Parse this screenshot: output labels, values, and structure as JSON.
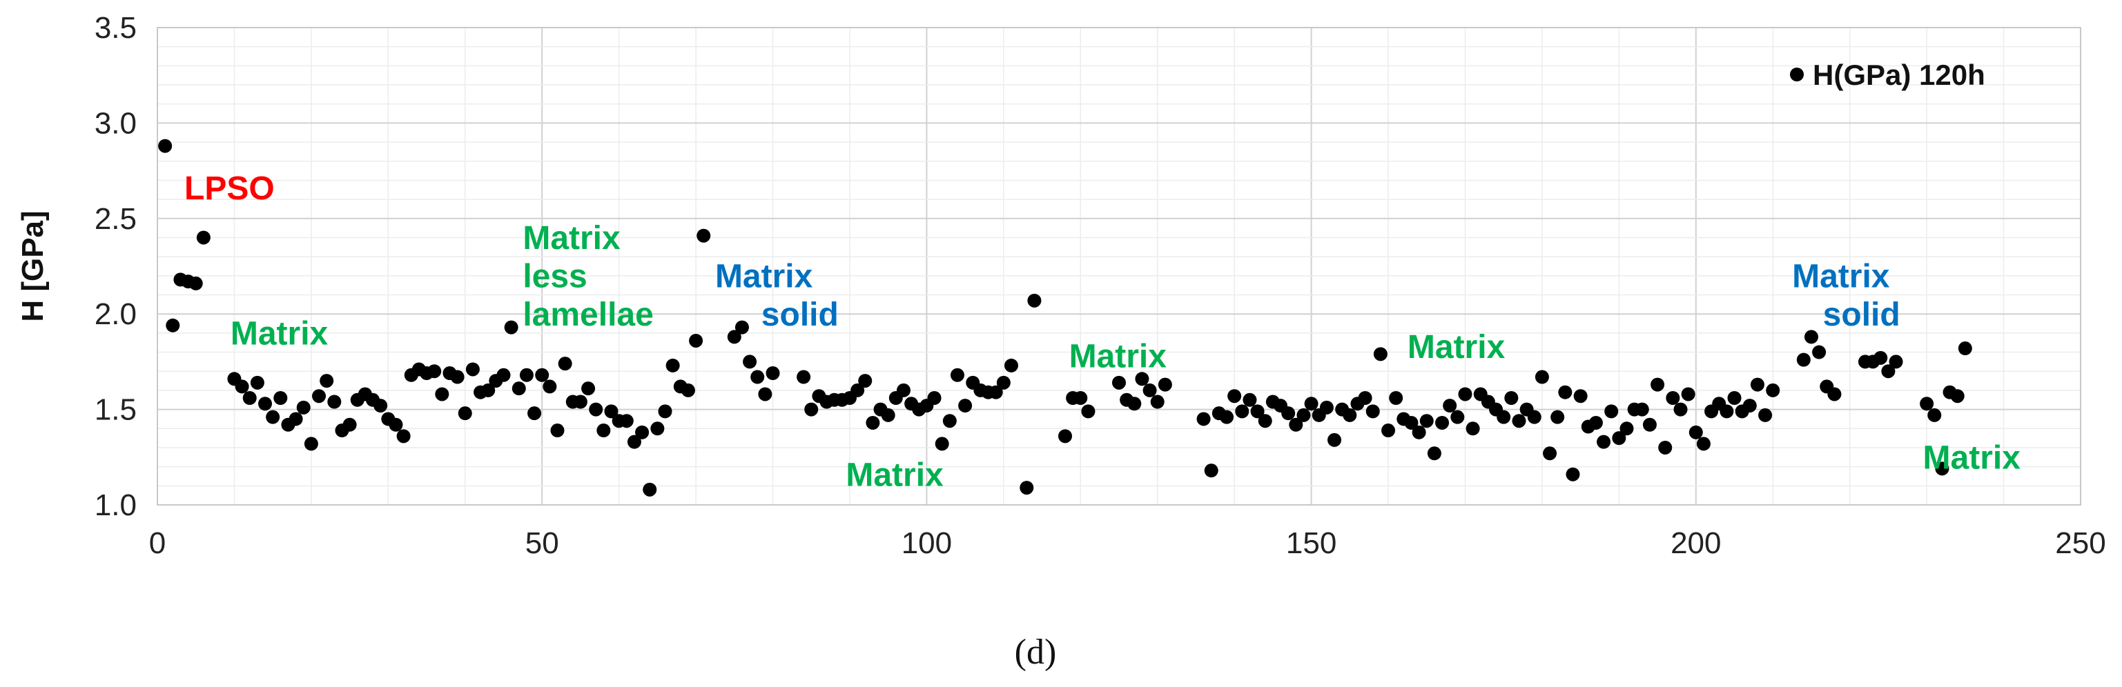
{
  "chart_data": {
    "type": "scatter",
    "title": "",
    "xlabel": "",
    "ylabel": "H [GPa]",
    "xlim": [
      0,
      250
    ],
    "ylim": [
      1.0,
      3.5
    ],
    "xticks": [
      "0",
      "50",
      "100",
      "150",
      "200",
      "250"
    ],
    "yticks": [
      "1.0",
      "1.5",
      "2.0",
      "2.5",
      "3.0",
      "3.5"
    ],
    "grid": true,
    "legend_position": "top-right",
    "series": [
      {
        "name": "H(GPa) 120h",
        "color": "#000000",
        "x": [
          1,
          2,
          3,
          4,
          5,
          6,
          10,
          11,
          12,
          13,
          14,
          15,
          16,
          17,
          18,
          19,
          20,
          21,
          22,
          23,
          24,
          25,
          26,
          27,
          28,
          29,
          30,
          31,
          32,
          33,
          34,
          35,
          36,
          37,
          38,
          39,
          40,
          41,
          42,
          43,
          44,
          45,
          46,
          47,
          48,
          49,
          50,
          51,
          52,
          53,
          54,
          55,
          56,
          57,
          58,
          59,
          60,
          61,
          62,
          63,
          64,
          65,
          66,
          67,
          68,
          69,
          70,
          71,
          75,
          76,
          77,
          78,
          79,
          80,
          84,
          85,
          86,
          87,
          88,
          89,
          90,
          91,
          92,
          93,
          94,
          95,
          96,
          97,
          98,
          99,
          100,
          101,
          102,
          103,
          104,
          105,
          106,
          107,
          108,
          109,
          110,
          111,
          113,
          114,
          118,
          119,
          120,
          121,
          125,
          126,
          127,
          128,
          129,
          130,
          131,
          136,
          137,
          138,
          139,
          140,
          141,
          142,
          143,
          144,
          145,
          146,
          147,
          148,
          149,
          150,
          151,
          152,
          153,
          154,
          155,
          156,
          157,
          158,
          159,
          160,
          161,
          162,
          163,
          164,
          165,
          166,
          167,
          168,
          169,
          170,
          171,
          172,
          173,
          174,
          175,
          176,
          177,
          178,
          179,
          180,
          181,
          182,
          183,
          184,
          185,
          186,
          187,
          188,
          189,
          190,
          191,
          192,
          193,
          194,
          195,
          196,
          197,
          198,
          199,
          200,
          201,
          202,
          203,
          204,
          205,
          206,
          207,
          208,
          209,
          210,
          214,
          215,
          216,
          217,
          218,
          222,
          223,
          224,
          225,
          226,
          230,
          231,
          232,
          233,
          234,
          235
        ],
        "y": [
          2.88,
          1.94,
          2.18,
          2.17,
          2.16,
          2.4,
          1.66,
          1.62,
          1.56,
          1.64,
          1.53,
          1.46,
          1.56,
          1.42,
          1.45,
          1.51,
          1.32,
          1.57,
          1.65,
          1.54,
          1.39,
          1.42,
          1.55,
          1.58,
          1.55,
          1.52,
          1.45,
          1.42,
          1.36,
          1.68,
          1.71,
          1.69,
          1.7,
          1.58,
          1.69,
          1.67,
          1.48,
          1.71,
          1.59,
          1.6,
          1.65,
          1.68,
          1.93,
          1.61,
          1.68,
          1.48,
          1.68,
          1.62,
          1.39,
          1.74,
          1.54,
          1.54,
          1.61,
          1.5,
          1.39,
          1.49,
          1.44,
          1.44,
          1.33,
          1.38,
          1.08,
          1.4,
          1.49,
          1.73,
          1.62,
          1.6,
          1.86,
          2.41,
          1.88,
          1.93,
          1.75,
          1.67,
          1.58,
          1.69,
          1.67,
          1.5,
          1.57,
          1.54,
          1.55,
          1.55,
          1.56,
          1.6,
          1.65,
          1.43,
          1.5,
          1.47,
          1.56,
          1.6,
          1.53,
          1.5,
          1.52,
          1.56,
          1.32,
          1.44,
          1.68,
          1.52,
          1.64,
          1.6,
          1.59,
          1.59,
          1.64,
          1.73,
          1.09,
          2.07,
          1.36,
          1.56,
          1.56,
          1.49,
          1.64,
          1.55,
          1.53,
          1.66,
          1.6,
          1.54,
          1.63,
          1.45,
          1.18,
          1.48,
          1.46,
          1.57,
          1.49,
          1.55,
          1.49,
          1.44,
          1.54,
          1.52,
          1.48,
          1.42,
          1.47,
          1.53,
          1.47,
          1.51,
          1.34,
          1.5,
          1.47,
          1.53,
          1.56,
          1.49,
          1.79,
          1.39,
          1.56,
          1.45,
          1.43,
          1.38,
          1.44,
          1.27,
          1.43,
          1.52,
          1.46,
          1.58,
          1.4,
          1.58,
          1.54,
          1.5,
          1.46,
          1.56,
          1.44,
          1.5,
          1.46,
          1.67,
          1.27,
          1.46,
          1.59,
          1.16,
          1.57,
          1.41,
          1.43,
          1.33,
          1.49,
          1.35,
          1.4,
          1.5,
          1.5,
          1.42,
          1.63,
          1.3,
          1.56,
          1.5,
          1.58,
          1.38,
          1.32,
          1.49,
          1.53,
          1.49,
          1.56,
          1.49,
          1.52,
          1.63,
          1.47,
          1.6,
          1.76,
          1.88,
          1.8,
          1.62,
          1.58,
          1.75,
          1.75,
          1.77,
          1.7,
          1.75,
          1.53,
          1.47,
          1.19,
          1.59,
          1.57,
          1.82
        ]
      }
    ],
    "annotations": [
      {
        "text": "LPSO",
        "x": 3.5,
        "y": 2.6,
        "color": "#ff0000"
      },
      {
        "text": "Matrix",
        "x": 9.5,
        "y": 1.84,
        "color": "#00b050"
      },
      {
        "text": "Matrix",
        "x": 47.5,
        "y": 2.34,
        "color": "#00b050"
      },
      {
        "text": "less",
        "x": 47.5,
        "y": 2.14,
        "color": "#00b050"
      },
      {
        "text": "lamellae",
        "x": 47.5,
        "y": 1.94,
        "color": "#00b050"
      },
      {
        "text": "Matrix",
        "x": 72.5,
        "y": 2.14,
        "color": "#0070c0"
      },
      {
        "text": "solid",
        "x": 78.5,
        "y": 1.94,
        "color": "#0070c0"
      },
      {
        "text": "Matrix",
        "x": 89.5,
        "y": 1.1,
        "color": "#00b050"
      },
      {
        "text": "Matrix",
        "x": 118.5,
        "y": 1.72,
        "color": "#00b050"
      },
      {
        "text": "Matrix",
        "x": 162.5,
        "y": 1.77,
        "color": "#00b050"
      },
      {
        "text": "Matrix",
        "x": 212.5,
        "y": 2.14,
        "color": "#0070c0"
      },
      {
        "text": "solid",
        "x": 216.5,
        "y": 1.94,
        "color": "#0070c0"
      },
      {
        "text": "Matrix",
        "x": 229.5,
        "y": 1.19,
        "color": "#00b050"
      }
    ],
    "caption": "(d)"
  }
}
